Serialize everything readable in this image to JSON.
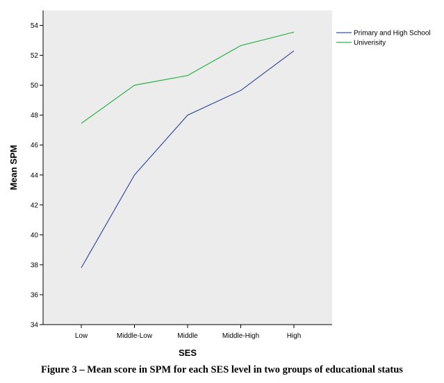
{
  "caption": "Figure 3 – Mean score in SPM for each SES level in two groups of educational status",
  "colors": {
    "plot_bg": "#ececec",
    "primary_series": "#3b4fa0",
    "university_series": "#2db34a"
  },
  "chart_data": {
    "type": "line",
    "title": "",
    "xlabel": "SES",
    "ylabel": "Mean SPM",
    "categories": [
      "Low",
      "Middle-Low",
      "Middle",
      "Middle-High",
      "High"
    ],
    "ylim": [
      34,
      55
    ],
    "yticks": [
      34,
      36,
      38,
      40,
      42,
      44,
      46,
      48,
      50,
      52,
      54
    ],
    "grid": false,
    "legend_position": "right",
    "series": [
      {
        "name": "Primary and High School",
        "color": "#3b4fa0",
        "values": [
          37.8,
          44.0,
          48.0,
          49.65,
          52.3
        ]
      },
      {
        "name": "Univerisity",
        "color": "#2db34a",
        "values": [
          47.45,
          50.0,
          50.65,
          52.65,
          53.55
        ]
      }
    ]
  }
}
